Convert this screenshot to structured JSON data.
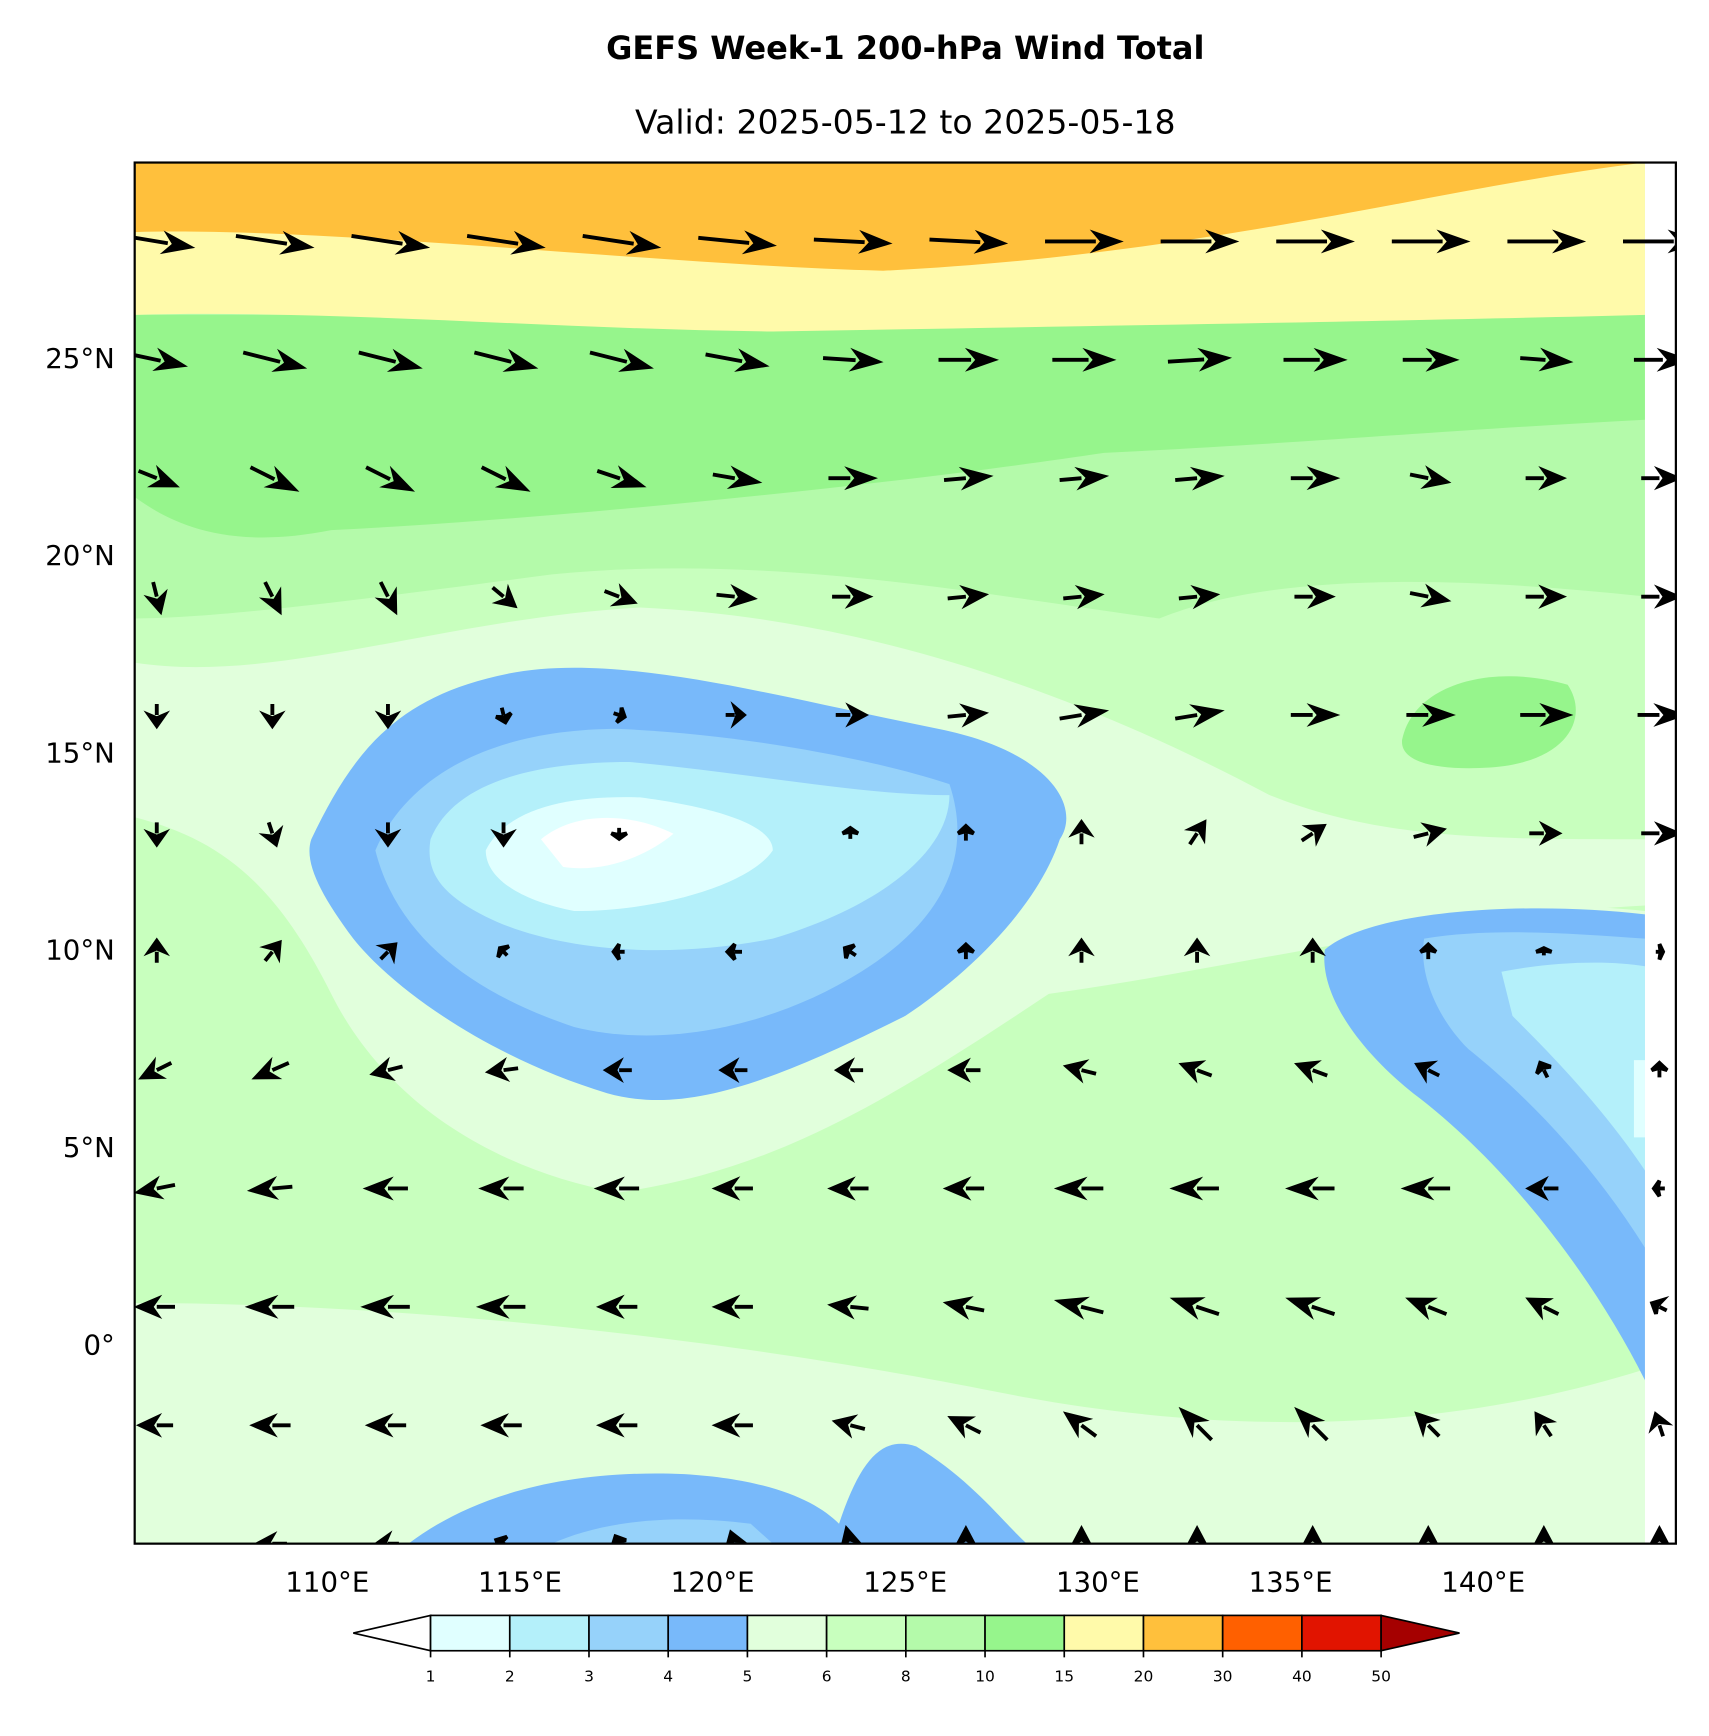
{
  "title": "GEFS Week-1 200-hPa Wind Total",
  "subtitle": "Valid: 2025-05-12 to 2025-05-18",
  "map": {
    "xlim": [
      105,
      145
    ],
    "ylim": [
      -5,
      30
    ],
    "xticks": [
      {
        "value": 110,
        "label": "110°E"
      },
      {
        "value": 115,
        "label": "115°E"
      },
      {
        "value": 120,
        "label": "120°E"
      },
      {
        "value": 125,
        "label": "125°E"
      },
      {
        "value": 130,
        "label": "130°E"
      },
      {
        "value": 135,
        "label": "135°E"
      },
      {
        "value": 140,
        "label": "140°E"
      }
    ],
    "yticks": [
      {
        "value": 0,
        "label": "0°"
      },
      {
        "value": 5,
        "label": "5°N"
      },
      {
        "value": 10,
        "label": "10°N"
      },
      {
        "value": 15,
        "label": "15°N"
      },
      {
        "value": 20,
        "label": "20°N"
      },
      {
        "value": 25,
        "label": "25°N"
      }
    ]
  },
  "wind": {
    "lats": [
      28,
      25,
      22,
      19,
      16,
      13,
      10,
      7,
      4,
      1,
      -2,
      -5
    ],
    "lons": [
      105,
      108,
      111,
      114,
      117,
      120,
      123,
      126,
      129,
      132,
      135,
      138,
      141,
      144
    ],
    "u": [
      [
        18,
        20,
        20,
        20,
        20,
        20,
        20,
        20,
        20,
        20,
        20,
        20,
        20,
        20
      ],
      [
        14,
        16,
        16,
        16,
        16,
        16,
        15,
        15,
        16,
        16,
        16,
        14,
        13,
        14
      ],
      [
        10,
        12,
        12,
        12,
        12,
        12,
        12,
        12,
        12,
        12,
        12,
        10,
        10,
        10
      ],
      [
        2,
        4,
        4,
        6,
        8,
        10,
        10,
        10,
        10,
        10,
        10,
        10,
        10,
        10
      ],
      [
        0,
        0,
        0,
        1,
        3,
        5,
        8,
        10,
        12,
        12,
        12,
        12,
        13,
        12
      ],
      [
        0,
        2,
        0,
        0,
        0,
        0,
        0,
        0,
        0,
        4,
        6,
        8,
        8,
        10
      ],
      [
        0,
        4,
        4,
        -2,
        -3,
        -4,
        -3,
        0,
        0,
        0,
        0,
        0,
        0,
        2
      ],
      [
        -8,
        -9,
        -8,
        -8,
        -7,
        -7,
        -7,
        -8,
        -8,
        -8,
        -8,
        -6,
        -2,
        0
      ],
      [
        -10,
        -11,
        -11,
        -11,
        -11,
        -10,
        -10,
        -10,
        -12,
        -12,
        -12,
        -12,
        -8,
        -3
      ],
      [
        -10,
        -12,
        -12,
        -12,
        -10,
        -10,
        -10,
        -10,
        -12,
        -12,
        -12,
        -10,
        -8,
        -4
      ],
      [
        -9,
        -10,
        -10,
        -10,
        -10,
        -10,
        -8,
        -8,
        -8,
        -8,
        -8,
        -6,
        -4,
        -2
      ],
      [
        0,
        -8,
        -6,
        -4,
        -2,
        -2,
        -2,
        0,
        0,
        0,
        0,
        0,
        0,
        0
      ]
    ],
    "v": [
      [
        -3,
        -3,
        -3,
        -3,
        -3,
        -2,
        -1,
        -1,
        0,
        0,
        0,
        0,
        0,
        0
      ],
      [
        -3,
        -4,
        -4,
        -4,
        -4,
        -3,
        -1,
        0,
        0,
        1,
        0,
        0,
        -1,
        0
      ],
      [
        -4,
        -6,
        -6,
        -6,
        -4,
        -2,
        0,
        1,
        1,
        1,
        0,
        -2,
        0,
        0
      ],
      [
        -8,
        -8,
        -8,
        -5,
        -3,
        -1,
        0,
        1,
        1,
        1,
        0,
        -2,
        0,
        0
      ],
      [
        -6,
        -6,
        -6,
        -4,
        -1,
        0,
        0,
        1,
        2,
        2,
        0,
        0,
        0,
        0
      ],
      [
        -6,
        -6,
        -6,
        -6,
        -3,
        0,
        3,
        4,
        6,
        6,
        4,
        2,
        0,
        0
      ],
      [
        6,
        5,
        4,
        2,
        0,
        0,
        2,
        4,
        6,
        6,
        6,
        4,
        2,
        0
      ],
      [
        -4,
        -4,
        -2,
        -1,
        0,
        0,
        0,
        0,
        2,
        3,
        3,
        3,
        4,
        4
      ],
      [
        -2,
        -1,
        0,
        0,
        0,
        0,
        0,
        0,
        0,
        0,
        0,
        0,
        0,
        0
      ],
      [
        0,
        0,
        0,
        0,
        0,
        0,
        1,
        2,
        3,
        4,
        4,
        4,
        4,
        2
      ],
      [
        0,
        0,
        0,
        0,
        0,
        0,
        2,
        4,
        6,
        8,
        8,
        6,
        6,
        6
      ],
      [
        0,
        0,
        0,
        2,
        4,
        6,
        8,
        8,
        8,
        8,
        8,
        8,
        8,
        8
      ]
    ]
  },
  "colorbar": {
    "levels": [
      1,
      2,
      3,
      4,
      5,
      6,
      8,
      10,
      15,
      20,
      30,
      40,
      50
    ],
    "colors": [
      "#ffffff",
      "#e0ffff",
      "#b4f0fa",
      "#96d2fa",
      "#78b9fa",
      "#e1ffdc",
      "#c8ffbe",
      "#b4faaa",
      "#96f58c",
      "#fffaaa",
      "#ffc03c",
      "#ff6000",
      "#e11400",
      "#a50000"
    ]
  }
}
